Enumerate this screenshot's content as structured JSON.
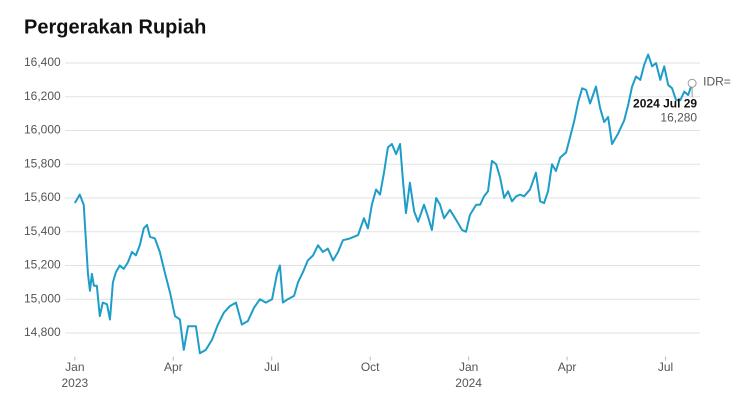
{
  "chart_data": {
    "type": "line",
    "title": "Pergerakan Rupiah",
    "xticks": [
      {
        "value": 0,
        "label": "Jan",
        "year": "2023"
      },
      {
        "value": 3,
        "label": "Apr"
      },
      {
        "value": 6,
        "label": "Jul"
      },
      {
        "value": 9,
        "label": "Oct"
      },
      {
        "value": 12,
        "label": "Jan",
        "year": "2024"
      },
      {
        "value": 15,
        "label": "Apr"
      },
      {
        "value": 18,
        "label": "Jul"
      }
    ],
    "xlim": [
      -0.3,
      19.05
    ],
    "ylim": [
      14660,
      16480
    ],
    "yticks": [
      {
        "value": 14800,
        "label": "14,800"
      },
      {
        "value": 15000,
        "label": "15,000"
      },
      {
        "value": 15200,
        "label": "15,200"
      },
      {
        "value": 15400,
        "label": "15,400"
      },
      {
        "value": 15600,
        "label": "15,600"
      },
      {
        "value": 15800,
        "label": "15,800"
      },
      {
        "value": 16000,
        "label": "16,000"
      },
      {
        "value": 16200,
        "label": "16,200"
      },
      {
        "value": 16400,
        "label": "16,400"
      }
    ],
    "grid": true,
    "x": [
      0,
      0.15,
      0.27,
      0.4,
      0.46,
      0.52,
      0.58,
      0.67,
      0.76,
      0.85,
      0.98,
      1.07,
      1.16,
      1.25,
      1.37,
      1.49,
      1.62,
      1.74,
      1.86,
      1.98,
      2.1,
      2.2,
      2.29,
      2.44,
      2.59,
      2.74,
      2.9,
      3.05,
      3.2,
      3.32,
      3.45,
      3.69,
      3.81,
      3.99,
      4.18,
      4.36,
      4.54,
      4.73,
      4.91,
      5.09,
      5.27,
      5.46,
      5.64,
      5.82,
      6.01,
      6.16,
      6.25,
      6.34,
      6.49,
      6.68,
      6.8,
      6.95,
      7.1,
      7.26,
      7.41,
      7.56,
      7.71,
      7.87,
      8.02,
      8.17,
      8.38,
      8.63,
      8.81,
      8.93,
      9.05,
      9.18,
      9.3,
      9.42,
      9.54,
      9.66,
      9.79,
      9.91,
      10.0,
      10.09,
      10.21,
      10.34,
      10.46,
      10.64,
      10.76,
      10.88,
      11.01,
      11.13,
      11.25,
      11.43,
      11.62,
      11.8,
      11.92,
      12.04,
      12.23,
      12.35,
      12.47,
      12.59,
      12.71,
      12.84,
      12.96,
      13.08,
      13.2,
      13.32,
      13.45,
      13.57,
      13.69,
      13.87,
      14.05,
      14.18,
      14.3,
      14.42,
      14.54,
      14.66,
      14.79,
      14.97,
      15.09,
      15.21,
      15.34,
      15.46,
      15.58,
      15.7,
      15.88,
      16.01,
      16.13,
      16.25,
      16.37,
      16.55,
      16.74,
      16.86,
      16.98,
      17.1,
      17.23,
      17.35,
      17.47,
      17.59,
      17.71,
      17.84,
      17.96,
      18.08,
      18.2,
      18.32,
      18.45,
      18.57,
      18.69,
      18.81
    ],
    "series": [
      {
        "name": "IDR=",
        "color": "#1f9dc9",
        "values": [
          15570,
          15620,
          15560,
          15150,
          15050,
          15150,
          15080,
          15080,
          14900,
          14980,
          14970,
          14880,
          15100,
          15160,
          15200,
          15180,
          15220,
          15280,
          15260,
          15320,
          15420,
          15440,
          15370,
          15360,
          15280,
          15160,
          15040,
          14900,
          14880,
          14700,
          14840,
          14840,
          14680,
          14700,
          14760,
          14850,
          14920,
          14960,
          14980,
          14850,
          14870,
          14950,
          15000,
          14980,
          15000,
          15150,
          15200,
          14980,
          15000,
          15020,
          15100,
          15160,
          15230,
          15260,
          15320,
          15280,
          15300,
          15230,
          15280,
          15350,
          15360,
          15380,
          15480,
          15420,
          15560,
          15650,
          15620,
          15750,
          15900,
          15920,
          15860,
          15920,
          15700,
          15510,
          15690,
          15520,
          15460,
          15560,
          15490,
          15410,
          15600,
          15560,
          15480,
          15530,
          15470,
          15410,
          15400,
          15500,
          15560,
          15560,
          15610,
          15640,
          15820,
          15800,
          15720,
          15600,
          15640,
          15580,
          15610,
          15620,
          15610,
          15650,
          15750,
          15580,
          15570,
          15640,
          15800,
          15760,
          15840,
          15870,
          15960,
          16050,
          16170,
          16250,
          16240,
          16160,
          16260,
          16130,
          16050,
          16080,
          15920,
          15980,
          16060,
          16150,
          16260,
          16320,
          16300,
          16390,
          16450,
          16380,
          16400,
          16300,
          16380,
          16270,
          16250,
          16180,
          16180,
          16230,
          16210,
          16280
        ]
      }
    ],
    "annotation": {
      "date": "2024 Jul 29",
      "value_label": "16,280"
    }
  }
}
